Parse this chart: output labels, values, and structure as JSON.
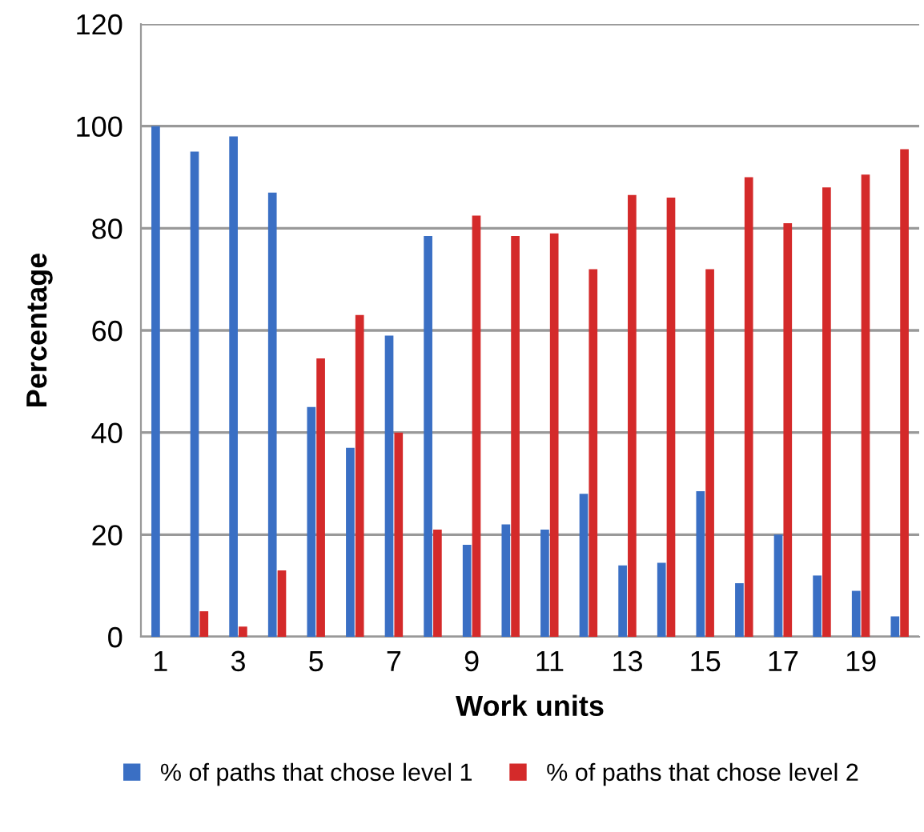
{
  "chart_data": {
    "type": "bar",
    "xlabel": "Work units",
    "ylabel": "Percentage",
    "categories": [
      "1",
      null,
      "3",
      null,
      "5",
      null,
      "7",
      null,
      "9",
      null,
      "11",
      null,
      "13",
      null,
      "15",
      null,
      "17",
      null,
      "19",
      null
    ],
    "series": [
      {
        "name": "% of paths that chose level 1",
        "color": "#3a6fc4",
        "values": [
          100,
          95,
          98,
          87,
          45,
          37,
          59,
          78.5,
          18,
          22,
          21,
          28,
          14,
          14.5,
          28.5,
          10.5,
          20,
          12,
          9,
          4
        ]
      },
      {
        "name": "% of paths that chose level 2",
        "color": "#d42a2a",
        "values": [
          0,
          5,
          2,
          13,
          54.5,
          63,
          40,
          21,
          82.5,
          78.5,
          79,
          72,
          86.5,
          86,
          72,
          90,
          81,
          88,
          90.5,
          95.5
        ]
      }
    ],
    "ylim": [
      0,
      120
    ],
    "yticks": [
      0,
      20,
      40,
      60,
      80,
      100,
      120
    ],
    "grid": "y",
    "legend": "bottom"
  }
}
